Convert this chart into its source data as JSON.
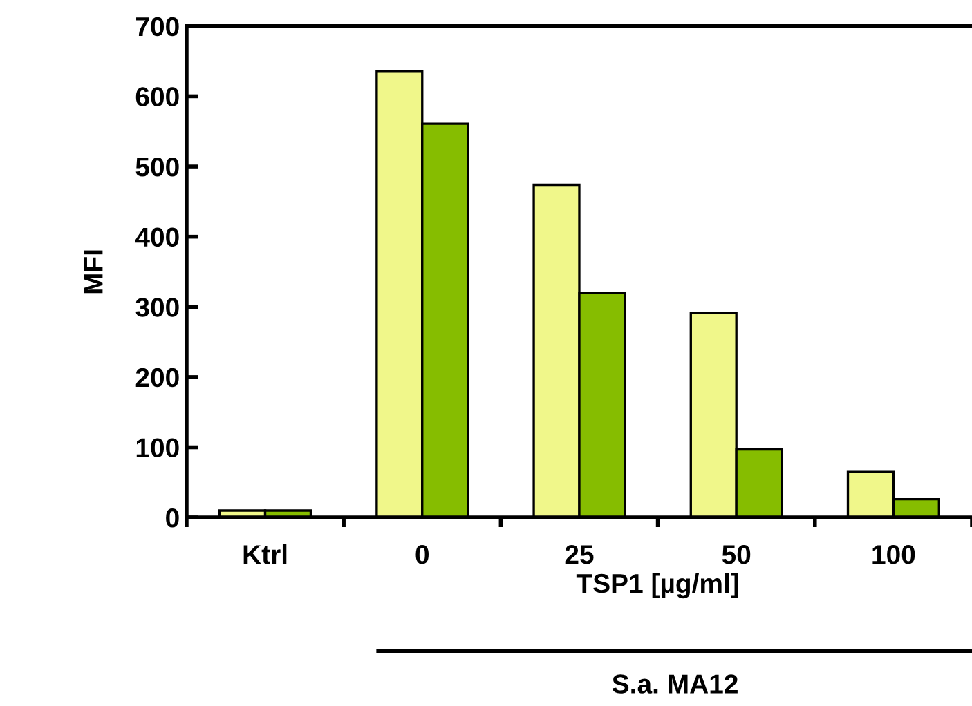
{
  "chart_data": {
    "type": "bar",
    "ylabel": "MFI",
    "xlabel": "TSP1 [µg/ml]",
    "categories": [
      "Ktrl",
      "0",
      "25",
      "50",
      "100"
    ],
    "series": [
      {
        "color": "#f0f78a",
        "values": [
          10,
          636,
          474,
          291,
          65
        ]
      },
      {
        "color": "#86bd00",
        "values": [
          10,
          561,
          320,
          97,
          26
        ]
      }
    ],
    "ylim": [
      0,
      700
    ],
    "yticks": [
      0,
      100,
      200,
      300,
      400,
      500,
      600,
      700
    ],
    "grid": false,
    "legend": false,
    "annotations": [
      "S.a. MA12"
    ]
  }
}
